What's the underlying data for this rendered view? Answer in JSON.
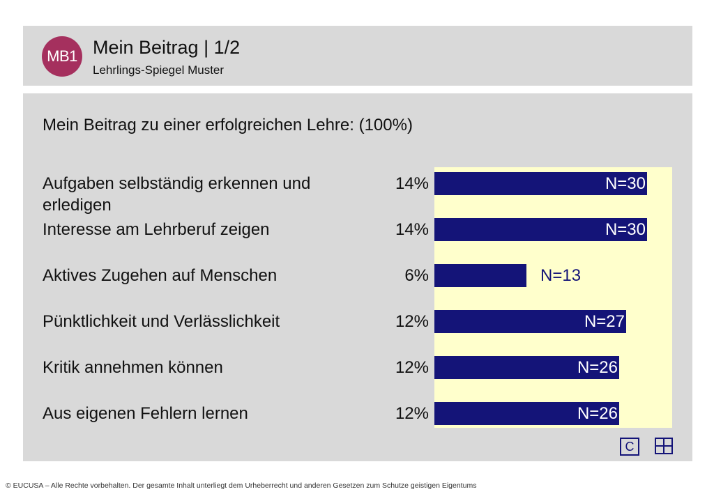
{
  "header": {
    "badge": "MB1",
    "title": "Mein Beitrag | 1/2",
    "subtitle": "Lehrlings-Spiegel Muster"
  },
  "footer": {
    "copyright": "© EUCUSA – Alle Rechte vorbehalten. Der gesamte Inhalt unterliegt dem Urheberrecht und anderen Gesetzen zum Schutze geistigen Eigentums"
  },
  "icons": {
    "c_label": "C",
    "c_icon": "c-box-icon",
    "grid_icon": "grid-icon"
  },
  "colors": {
    "bar": "#141478",
    "plot_bg": "#ffffcc",
    "badge": "#a5305e",
    "panel": "#d9d9d9"
  },
  "chart_data": {
    "type": "bar",
    "orientation": "horizontal",
    "title": "Mein Beitrag zu einer erfolgreichen Lehre: (100%)",
    "categories": [
      "Aufgaben selbständig erkennen und erledigen",
      "Interesse am Lehrberuf zeigen",
      "Aktives Zugehen auf Menschen",
      "Pünktlichkeit und Verlässlichkeit",
      "Kritik annehmen können",
      "Aus eigenen Fehlern lernen"
    ],
    "percent_labels": [
      "14%",
      "14%",
      "6%",
      "12%",
      "12%",
      "12%"
    ],
    "values": [
      30,
      30,
      13,
      27,
      26,
      26
    ],
    "value_labels": [
      "N=30",
      "N=30",
      "N=13",
      "N=27",
      "N=26",
      "N=26"
    ],
    "xlim": [
      0,
      33.5
    ]
  }
}
